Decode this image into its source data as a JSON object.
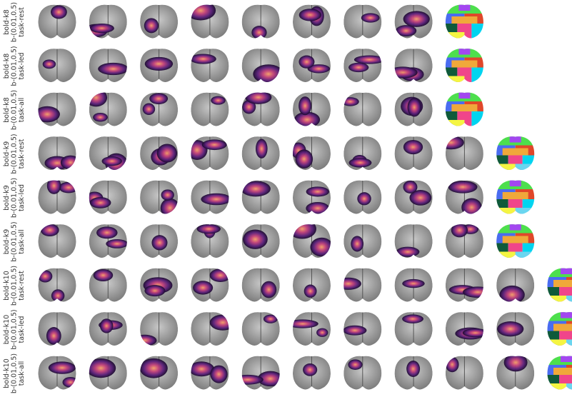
{
  "rows": [
    {
      "lines": [
        "bold-k8",
        "b-(0.01,0.5)",
        "task-rest"
      ],
      "maps": 8
    },
    {
      "lines": [
        "bold-k8",
        "b-(0.01,0.5)",
        "task-led"
      ],
      "maps": 8
    },
    {
      "lines": [
        "bold-k8",
        "b-(0.01,0.5)",
        "task-all"
      ],
      "maps": 8
    },
    {
      "lines": [
        "bold-k9",
        "b-(0.01,0.5)",
        "task-rest"
      ],
      "maps": 9
    },
    {
      "lines": [
        "bold-k9",
        "b-(0.01,0.5)",
        "task-led"
      ],
      "maps": 9
    },
    {
      "lines": [
        "bold-k9",
        "b-(0.01,0.5)",
        "task-all"
      ],
      "maps": 9
    },
    {
      "lines": [
        "bold-k10",
        "b-(0.01,0.5)",
        "task-rest"
      ],
      "maps": 10
    },
    {
      "lines": [
        "bold-k10",
        "b-(0.01,0.5)",
        "task-led"
      ],
      "maps": 10
    },
    {
      "lines": [
        "bold-k10",
        "b-(0.01,0.5)",
        "task-all"
      ],
      "maps": 10
    }
  ]
}
